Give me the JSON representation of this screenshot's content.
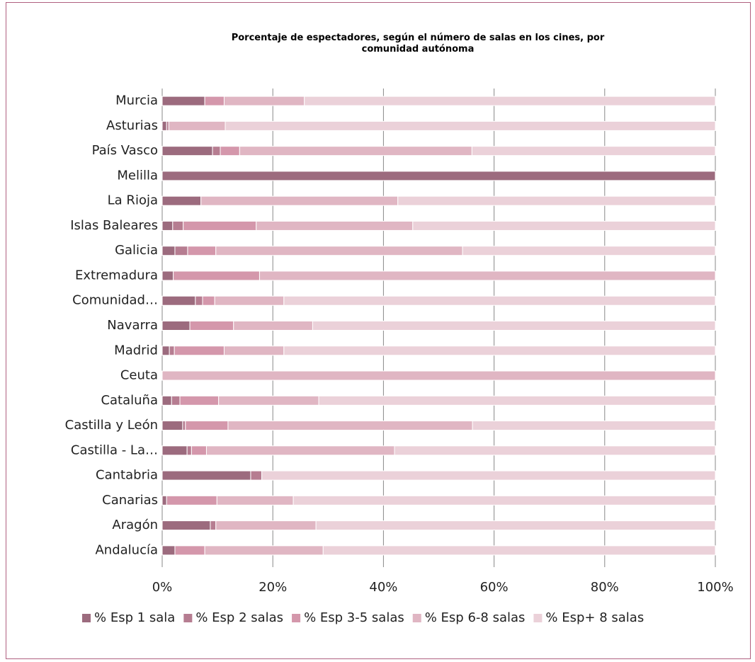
{
  "chart_data": {
    "type": "stacked-bar-horizontal",
    "title": "Porcentaje de espectadores, según el número de salas en los cines, por comunidad autónoma",
    "categories": [
      "Andalucía",
      "Aragón",
      "Canarias",
      "Cantabria",
      "Castilla - La…",
      "Castilla y León",
      "Cataluña",
      "Ceuta",
      "Madrid",
      "Navarra",
      "Comunidad…",
      "Extremadura",
      "Galicia",
      "Islas Baleares",
      "La Rioja",
      "Melilla",
      "País Vasco",
      "Asturias",
      "Murcia"
    ],
    "series": [
      {
        "name": "% Esp 1 sala",
        "color": "#9c6b7e",
        "values": [
          2.3,
          8.7,
          0.8,
          16.0,
          4.5,
          3.7,
          1.7,
          0,
          1.3,
          5.0,
          6.0,
          2.0,
          2.3,
          1.9,
          7.0,
          100,
          9.1,
          0.8,
          7.7
        ]
      },
      {
        "name": "% Esp 2 salas",
        "color": "#b67d91",
        "values": [
          0,
          1.0,
          0,
          2.0,
          0.8,
          0.5,
          1.5,
          0,
          0.9,
          0,
          1.3,
          0,
          2.3,
          1.9,
          0,
          0,
          1.4,
          0.4,
          0
        ]
      },
      {
        "name": "% Esp 3-5 salas",
        "color": "#d497ab",
        "values": [
          5.4,
          0,
          9.1,
          0,
          2.7,
          7.7,
          7.0,
          0,
          9.0,
          7.9,
          2.2,
          15.6,
          5.1,
          13.2,
          0,
          0,
          3.5,
          0,
          3.5
        ]
      },
      {
        "name": "% Esp 6-8 salas",
        "color": "#e0b6c3",
        "values": [
          21.4,
          18.1,
          13.8,
          0,
          34.0,
          44.2,
          18.1,
          100,
          10.8,
          14.3,
          12.5,
          82.4,
          44.6,
          28.3,
          35.6,
          0,
          42.0,
          10.2,
          14.5
        ]
      },
      {
        "name": "% Esp+ 8 salas",
        "color": "#ebd1d9",
        "values": [
          70.9,
          72.2,
          76.3,
          82.0,
          58.0,
          43.9,
          71.7,
          0,
          78.0,
          72.8,
          78.0,
          0,
          45.7,
          54.7,
          57.4,
          0,
          44.0,
          88.6,
          74.3
        ]
      }
    ],
    "xlim": [
      0,
      100
    ],
    "xticks": [
      {
        "value": 0,
        "label": "0%"
      },
      {
        "value": 20,
        "label": "20%"
      },
      {
        "value": 40,
        "label": "40%"
      },
      {
        "value": 60,
        "label": "60%"
      },
      {
        "value": 80,
        "label": "80%"
      },
      {
        "value": 100,
        "label": "100%"
      }
    ],
    "grid": true,
    "legend": "bottom"
  }
}
